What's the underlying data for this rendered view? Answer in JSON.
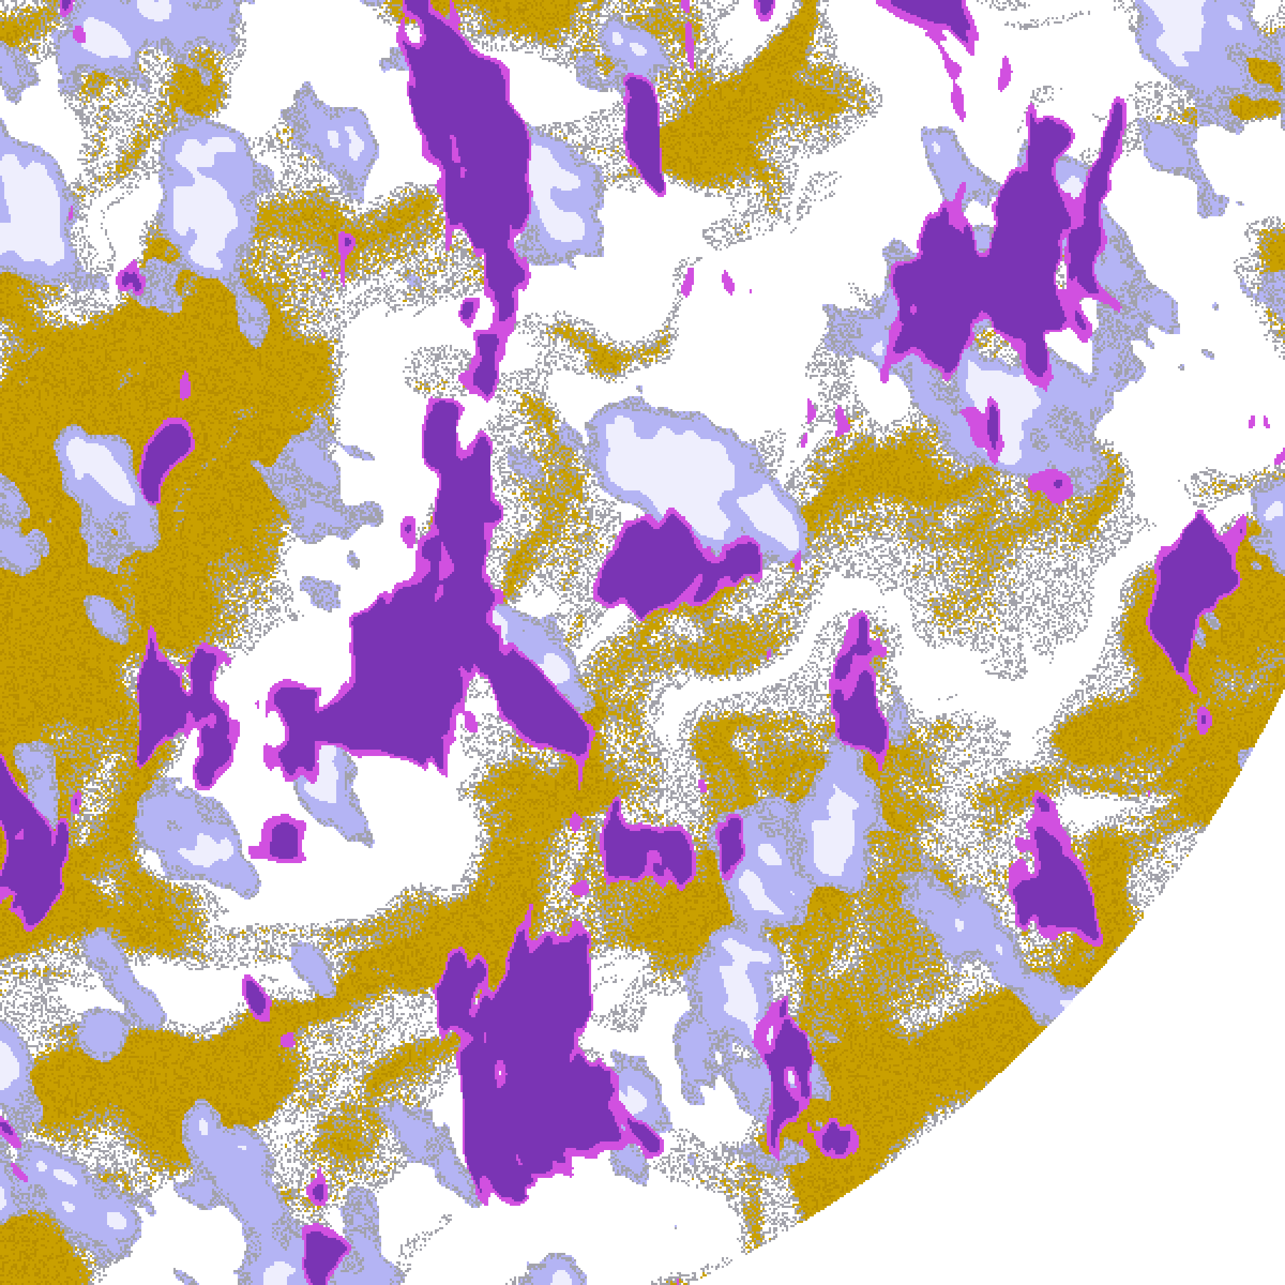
{
  "image": {
    "background_color": "#ffffff",
    "palette": {
      "clear": "#ffffff",
      "low_cloud": "#c9a000",
      "low_cloud_dark": "#b88f00",
      "grey_cloud": "#a2a2aa",
      "thin_cirrus": "#b4b4f4",
      "thick_cloud": "#eeeefd",
      "deep_convection": "#7a34b4",
      "magenta_cloud": "#d150e0"
    }
  }
}
